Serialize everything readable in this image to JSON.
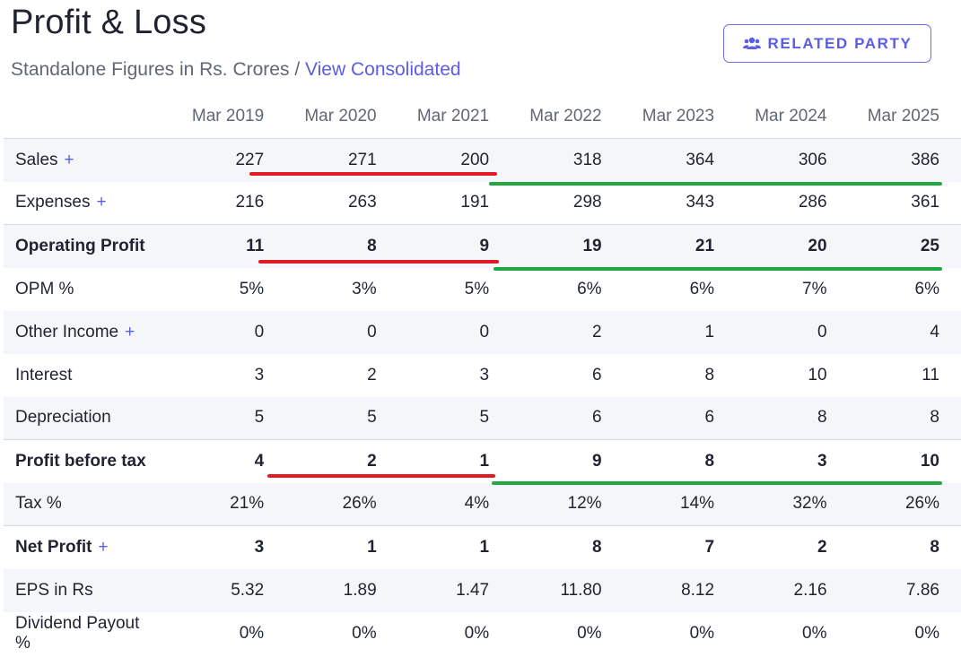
{
  "header": {
    "title": "Profit & Loss",
    "subtitle": "Standalone Figures in Rs. Crores",
    "separator": " / ",
    "consolidated_link": "View Consolidated",
    "related_party_label": "RELATED PARTY",
    "related_party_icon": "users-icon"
  },
  "colors": {
    "accent": "#5b5de8",
    "highlight_red": "#e01b24",
    "highlight_green": "#22a843"
  },
  "table": {
    "columns": [
      "Mar 2019",
      "Mar 2020",
      "Mar 2021",
      "Mar 2022",
      "Mar 2023",
      "Mar 2024",
      "Mar 2025"
    ],
    "rows": [
      {
        "label": "Sales",
        "expandable": true,
        "values": [
          "227",
          "271",
          "200",
          "318",
          "364",
          "306",
          "386"
        ]
      },
      {
        "label": "Expenses",
        "expandable": true,
        "values": [
          "216",
          "263",
          "191",
          "298",
          "343",
          "286",
          "361"
        ]
      },
      {
        "label": "Operating Profit",
        "expandable": false,
        "values": [
          "11",
          "8",
          "9",
          "19",
          "21",
          "20",
          "25"
        ]
      },
      {
        "label": "OPM %",
        "expandable": false,
        "values": [
          "5%",
          "3%",
          "5%",
          "6%",
          "6%",
          "7%",
          "6%"
        ]
      },
      {
        "label": "Other Income",
        "expandable": true,
        "values": [
          "0",
          "0",
          "0",
          "2",
          "1",
          "0",
          "4"
        ]
      },
      {
        "label": "Interest",
        "expandable": false,
        "values": [
          "3",
          "2",
          "3",
          "6",
          "8",
          "10",
          "11"
        ]
      },
      {
        "label": "Depreciation",
        "expandable": false,
        "values": [
          "5",
          "5",
          "5",
          "6",
          "6",
          "8",
          "8"
        ]
      },
      {
        "label": "Profit before tax",
        "expandable": false,
        "values": [
          "4",
          "2",
          "1",
          "9",
          "8",
          "3",
          "10"
        ]
      },
      {
        "label": "Tax %",
        "expandable": false,
        "values": [
          "21%",
          "26%",
          "4%",
          "12%",
          "14%",
          "32%",
          "26%"
        ]
      },
      {
        "label": "Net Profit",
        "expandable": true,
        "values": [
          "3",
          "1",
          "1",
          "8",
          "7",
          "2",
          "8"
        ]
      },
      {
        "label": "EPS in Rs",
        "expandable": false,
        "values": [
          "5.32",
          "1.89",
          "1.47",
          "11.80",
          "8.12",
          "2.16",
          "7.86"
        ]
      },
      {
        "label": "Dividend Payout %",
        "expandable": false,
        "values": [
          "0%",
          "0%",
          "0%",
          "0%",
          "0%",
          "0%",
          "0%"
        ]
      }
    ],
    "plus_symbol": "+"
  }
}
